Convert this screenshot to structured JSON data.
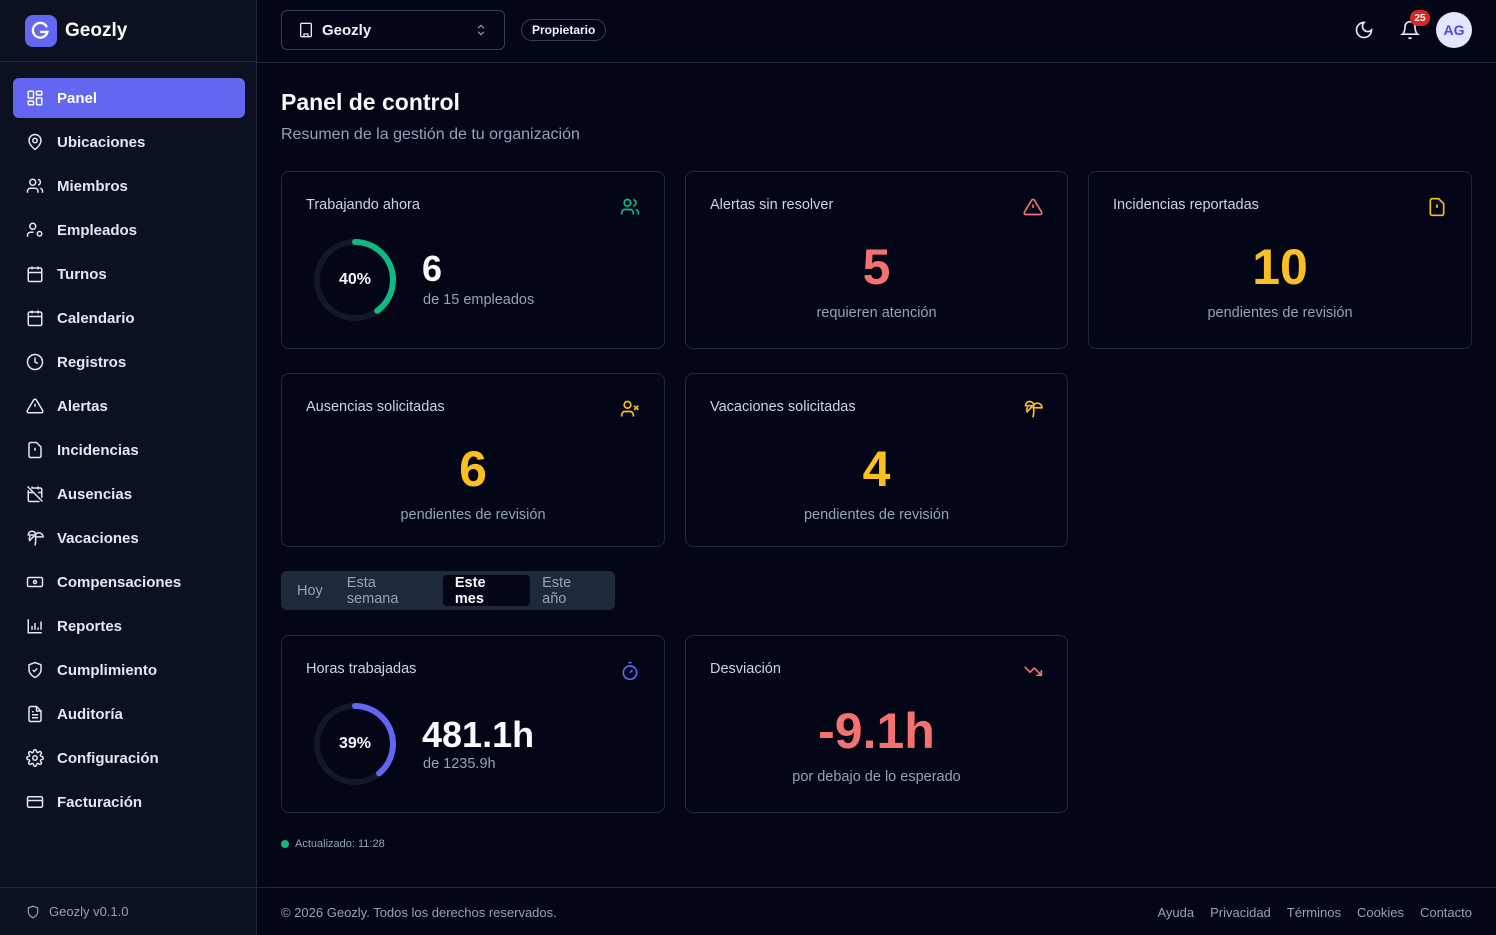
{
  "app": {
    "name": "Geozly",
    "version_label": "Geozly v0.1.0"
  },
  "colors": {
    "accent": "#6366f1",
    "green": "#10b981",
    "red": "#f87171",
    "amber": "#fbbf24",
    "orange": "#f97316"
  },
  "sidebar": {
    "items": [
      {
        "label": "Panel",
        "icon": "grid-icon",
        "active": true
      },
      {
        "label": "Ubicaciones",
        "icon": "map-pin-icon"
      },
      {
        "label": "Miembros",
        "icon": "users-icon"
      },
      {
        "label": "Empleados",
        "icon": "user-cog-icon"
      },
      {
        "label": "Turnos",
        "icon": "calendar-grid-icon"
      },
      {
        "label": "Calendario",
        "icon": "calendar-icon"
      },
      {
        "label": "Registros",
        "icon": "clock-icon"
      },
      {
        "label": "Alertas",
        "icon": "warning-icon"
      },
      {
        "label": "Incidencias",
        "icon": "file-alert-icon"
      },
      {
        "label": "Ausencias",
        "icon": "calendar-off-icon"
      },
      {
        "label": "Vacaciones",
        "icon": "palm-tree-icon"
      },
      {
        "label": "Compensaciones",
        "icon": "banknote-icon"
      },
      {
        "label": "Reportes",
        "icon": "bar-chart-icon"
      },
      {
        "label": "Cumplimiento",
        "icon": "shield-check-icon"
      },
      {
        "label": "Auditoría",
        "icon": "file-text-icon"
      },
      {
        "label": "Configuración",
        "icon": "gear-icon"
      },
      {
        "label": "Facturación",
        "icon": "credit-card-icon"
      }
    ]
  },
  "topbar": {
    "org_selected": "Geozly",
    "role": "Propietario",
    "notifications_count": "25",
    "avatar_initials": "AG"
  },
  "header": {
    "title": "Panel de control",
    "subtitle": "Resumen de la gestión de tu organización"
  },
  "cards": {
    "working": {
      "title": "Trabajando ahora",
      "percent_label": "40%",
      "percent": 0.4,
      "value": "6",
      "sub": "de 15 empleados"
    },
    "alerts": {
      "title": "Alertas sin resolver",
      "value": "5",
      "sub": "requieren atención"
    },
    "incidents": {
      "title": "Incidencias reportadas",
      "value": "10",
      "sub": "pendientes de revisión"
    },
    "absences": {
      "title": "Ausencias solicitadas",
      "value": "6",
      "sub": "pendientes de revisión"
    },
    "vacations": {
      "title": "Vacaciones solicitadas",
      "value": "4",
      "sub": "pendientes de revisión"
    },
    "hours": {
      "title": "Horas trabajadas",
      "percent_label": "39%",
      "percent": 0.39,
      "value": "481.1h",
      "sub": "de 1235.9h"
    },
    "deviation": {
      "title": "Desviación",
      "value": "-9.1h",
      "sub": "por debajo de lo esperado"
    }
  },
  "period_tabs": [
    {
      "label": "Hoy"
    },
    {
      "label": "Esta semana"
    },
    {
      "label": "Este mes",
      "active": true
    },
    {
      "label": "Este año"
    }
  ],
  "updated": "Actualizado: 11:28",
  "footer": {
    "copyright": "© 2026 Geozly. Todos los derechos reservados.",
    "links": [
      "Ayuda",
      "Privacidad",
      "Términos",
      "Cookies",
      "Contacto"
    ]
  }
}
